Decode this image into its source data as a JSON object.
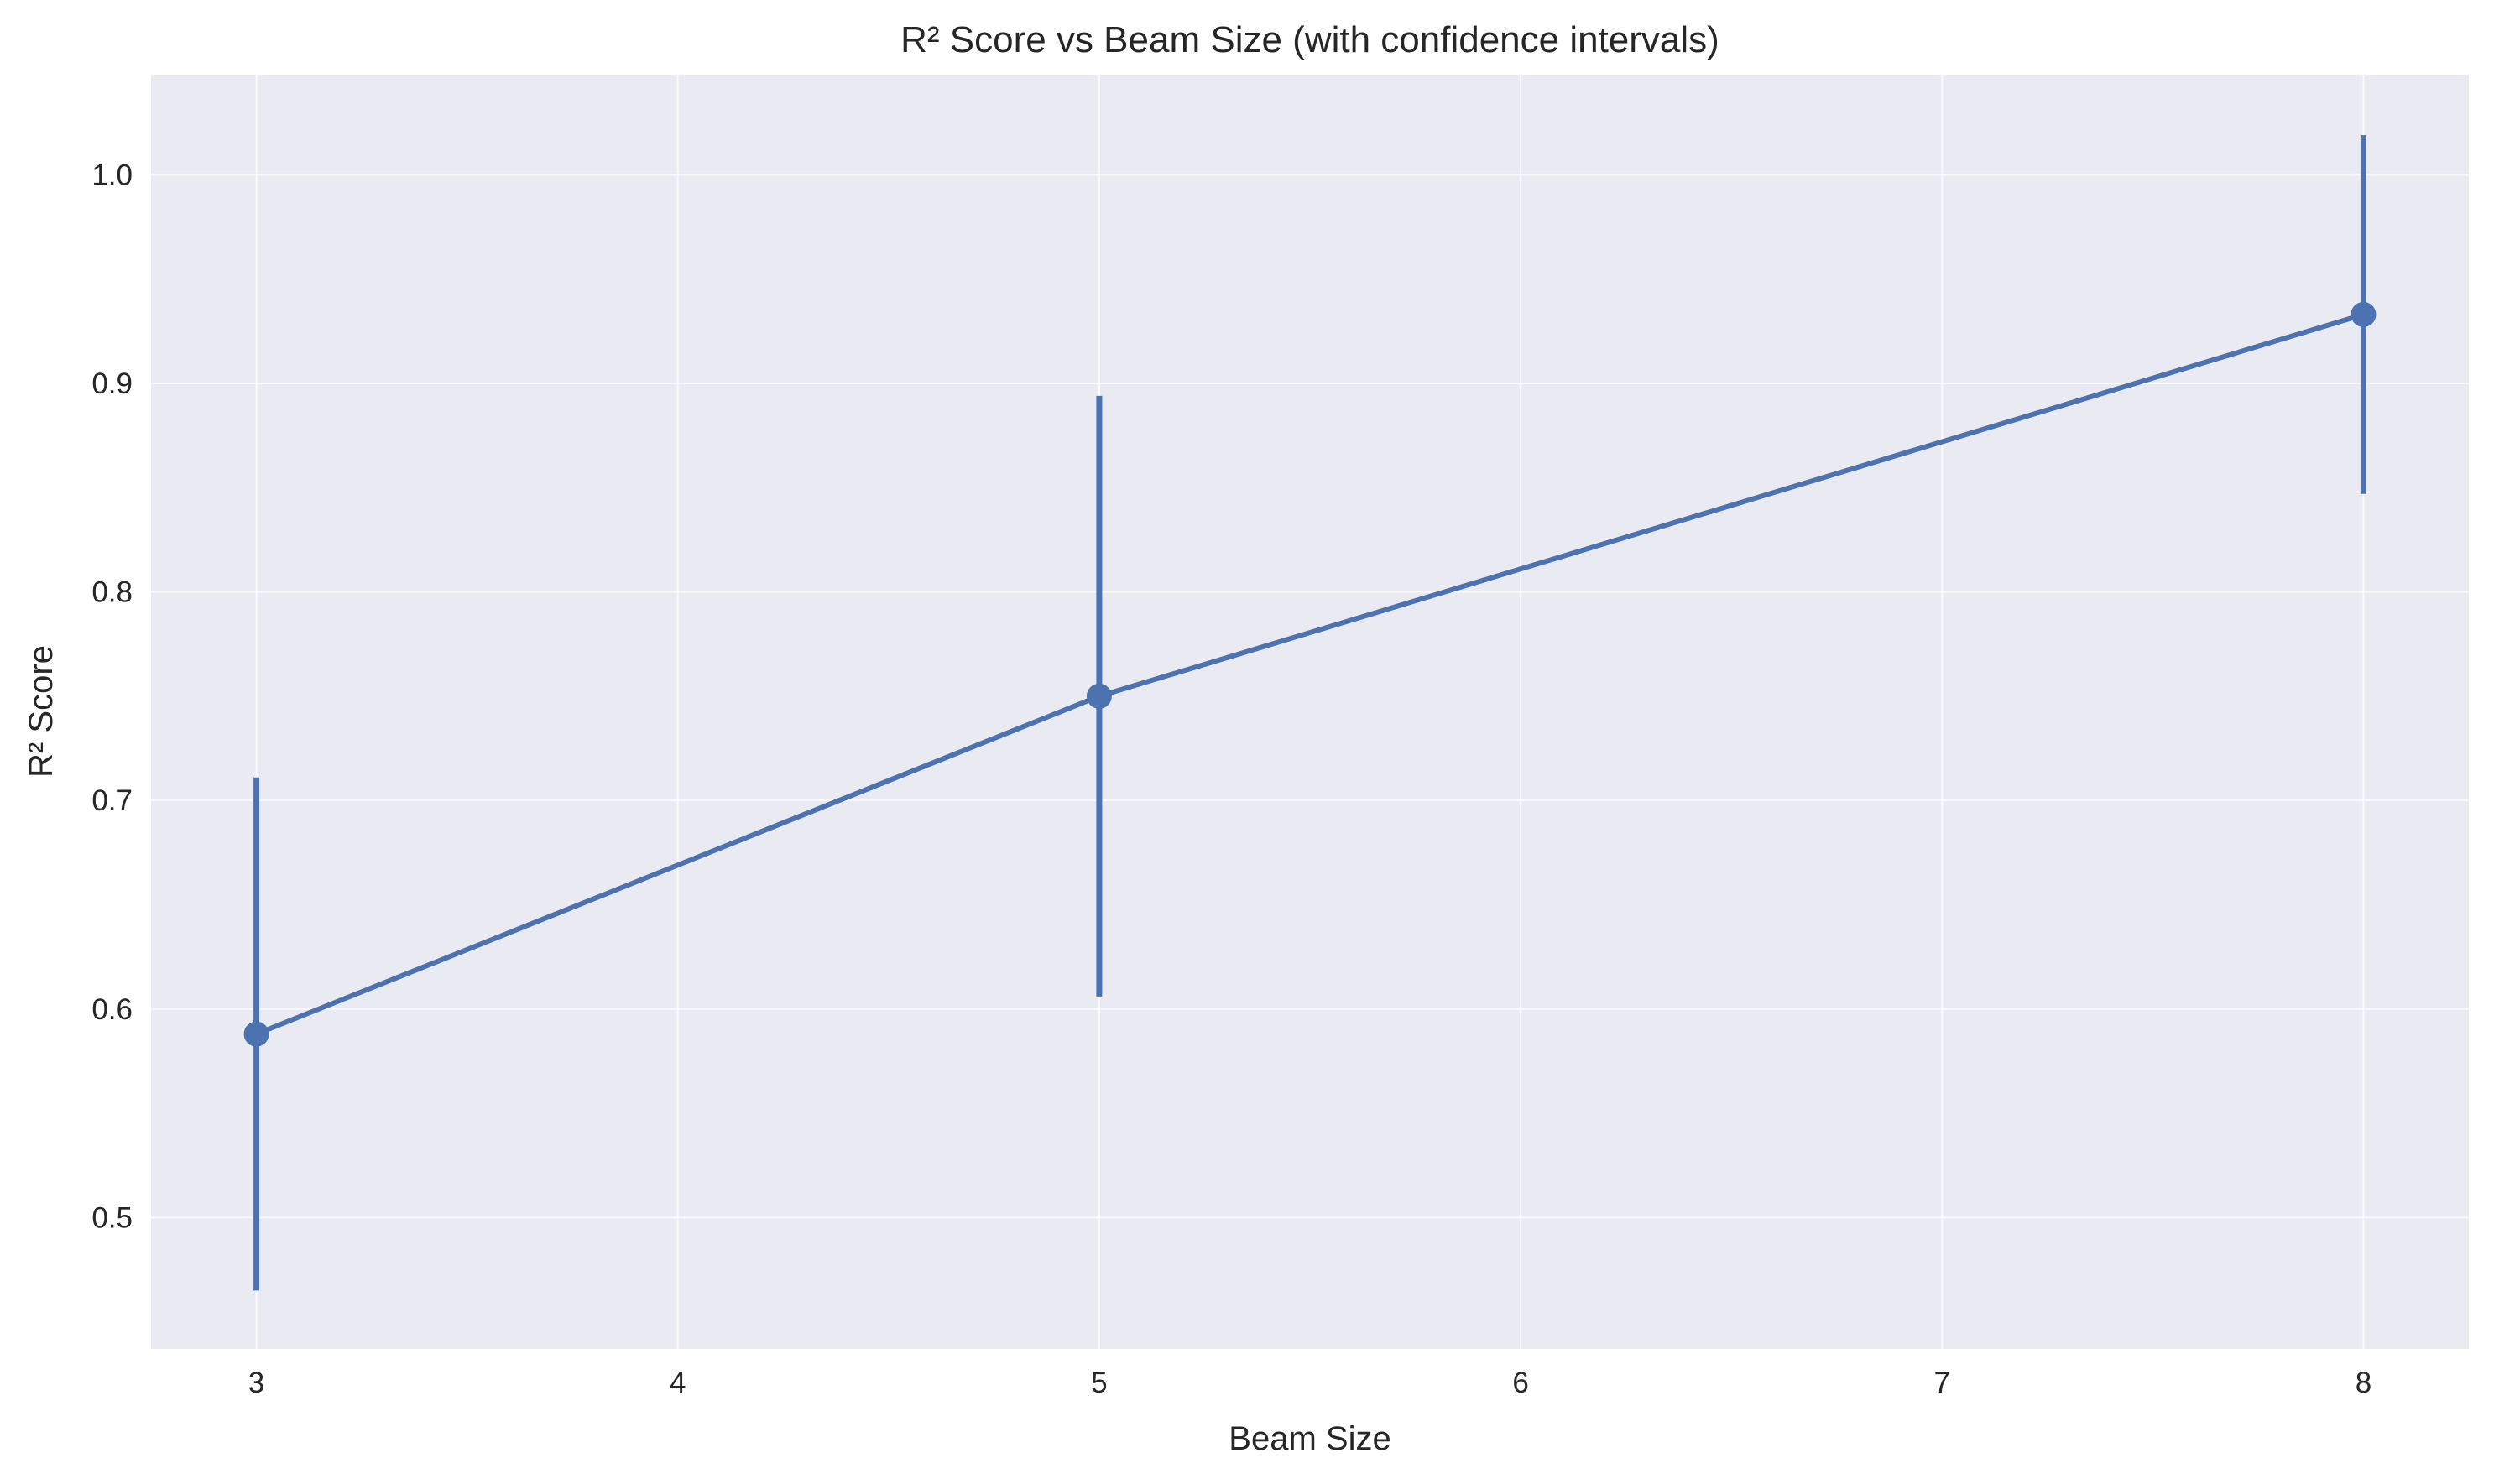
{
  "chart_data": {
    "type": "line",
    "title": "R² Score vs Beam Size (with confidence intervals)",
    "xlabel": "Beam Size",
    "ylabel": "R² Score",
    "xlim": [
      2.75,
      8.25
    ],
    "ylim": [
      0.437,
      1.048
    ],
    "x_ticks": [
      3,
      4,
      5,
      6,
      7,
      8
    ],
    "x_tick_labels": [
      "3",
      "4",
      "5",
      "6",
      "7",
      "8"
    ],
    "y_ticks": [
      0.5,
      0.6,
      0.7,
      0.8,
      0.9,
      1.0
    ],
    "y_tick_labels": [
      "0.5",
      "0.6",
      "0.7",
      "0.8",
      "0.9",
      "1.0"
    ],
    "grid": true,
    "colors": {
      "series": "#4c72b0",
      "plot_background": "#eaeaf2",
      "grid": "#ffffff",
      "text": "#262626"
    },
    "series": [
      {
        "x": [
          3,
          5,
          8
        ],
        "y": [
          0.588,
          0.75,
          0.933
        ],
        "ci_low": [
          0.465,
          0.606,
          0.847
        ],
        "ci_high": [
          0.711,
          0.894,
          1.019
        ]
      }
    ]
  }
}
